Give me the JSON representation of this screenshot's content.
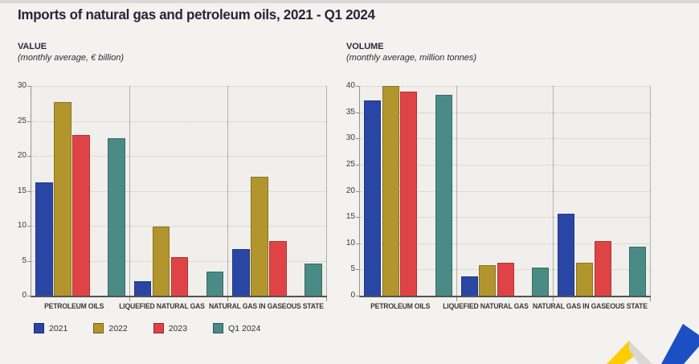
{
  "title": "Imports of natural gas and petroleum oils, 2021 - Q1 2024",
  "colors": {
    "page_background": "#f4f2ef",
    "panel_background": "#f0efec",
    "series_2021_blue": "#2a46a5",
    "series_2022_gold": "#b2952c",
    "series_2023_red": "#e04345",
    "series_q1_2024_teal": "#4a8b85",
    "logo_yellow": "#ffcc00",
    "logo_grey": "#d8d8d6",
    "logo_blue": "#1d4fc4"
  },
  "legend": {
    "items": [
      {
        "label": "2021",
        "color": "#2a46a5"
      },
      {
        "label": "2022",
        "color": "#b2952c"
      },
      {
        "label": "2023",
        "color": "#e04345"
      },
      {
        "label": "Q1 2024",
        "color": "#4a8b85"
      }
    ]
  },
  "chart_data": [
    {
      "type": "bar",
      "heading": "VALUE",
      "subtitle": "(monthly average, € billion)",
      "categories": [
        "PETROLEUM OILS",
        "LIQUEFIED NATURAL GAS",
        "NATURAL GAS IN GASEOUS STATE"
      ],
      "series": [
        {
          "name": "2021",
          "color": "#2a46a5",
          "values": [
            16.2,
            2.1,
            6.7
          ]
        },
        {
          "name": "2022",
          "color": "#b2952c",
          "values": [
            27.7,
            9.9,
            17.0
          ]
        },
        {
          "name": "2023",
          "color": "#e04345",
          "values": [
            23.0,
            5.5,
            7.8
          ]
        },
        {
          "name": "Q1 2024",
          "color": "#4a8b85",
          "values": [
            22.5,
            3.5,
            4.6
          ]
        }
      ],
      "ylim": [
        0,
        30
      ],
      "ytick_step": 5,
      "grid": "dotted-horizontal",
      "gap_before_last_series": true,
      "legend_position": "bottom-left"
    },
    {
      "type": "bar",
      "heading": "VOLUME",
      "subtitle": "(monthly average, million tonnes)",
      "categories": [
        "PETROLEUM OILS",
        "LIQUEFIED NATURAL GAS",
        "NATURAL GAS IN GASEOUS STATE"
      ],
      "series": [
        {
          "name": "2021",
          "color": "#2a46a5",
          "values": [
            37.2,
            3.7,
            15.7
          ]
        },
        {
          "name": "2022",
          "color": "#b2952c",
          "values": [
            40.0,
            5.8,
            6.3
          ]
        },
        {
          "name": "2023",
          "color": "#e04345",
          "values": [
            38.9,
            6.3,
            10.4
          ]
        },
        {
          "name": "Q1 2024",
          "color": "#4a8b85",
          "values": [
            38.3,
            5.4,
            9.3
          ]
        }
      ],
      "ylim": [
        0,
        40
      ],
      "ytick_step": 5,
      "grid": "dotted-horizontal",
      "gap_before_last_series": true,
      "legend_position": "bottom-left"
    }
  ],
  "logo_name": "eurostat-zigzag-logo"
}
